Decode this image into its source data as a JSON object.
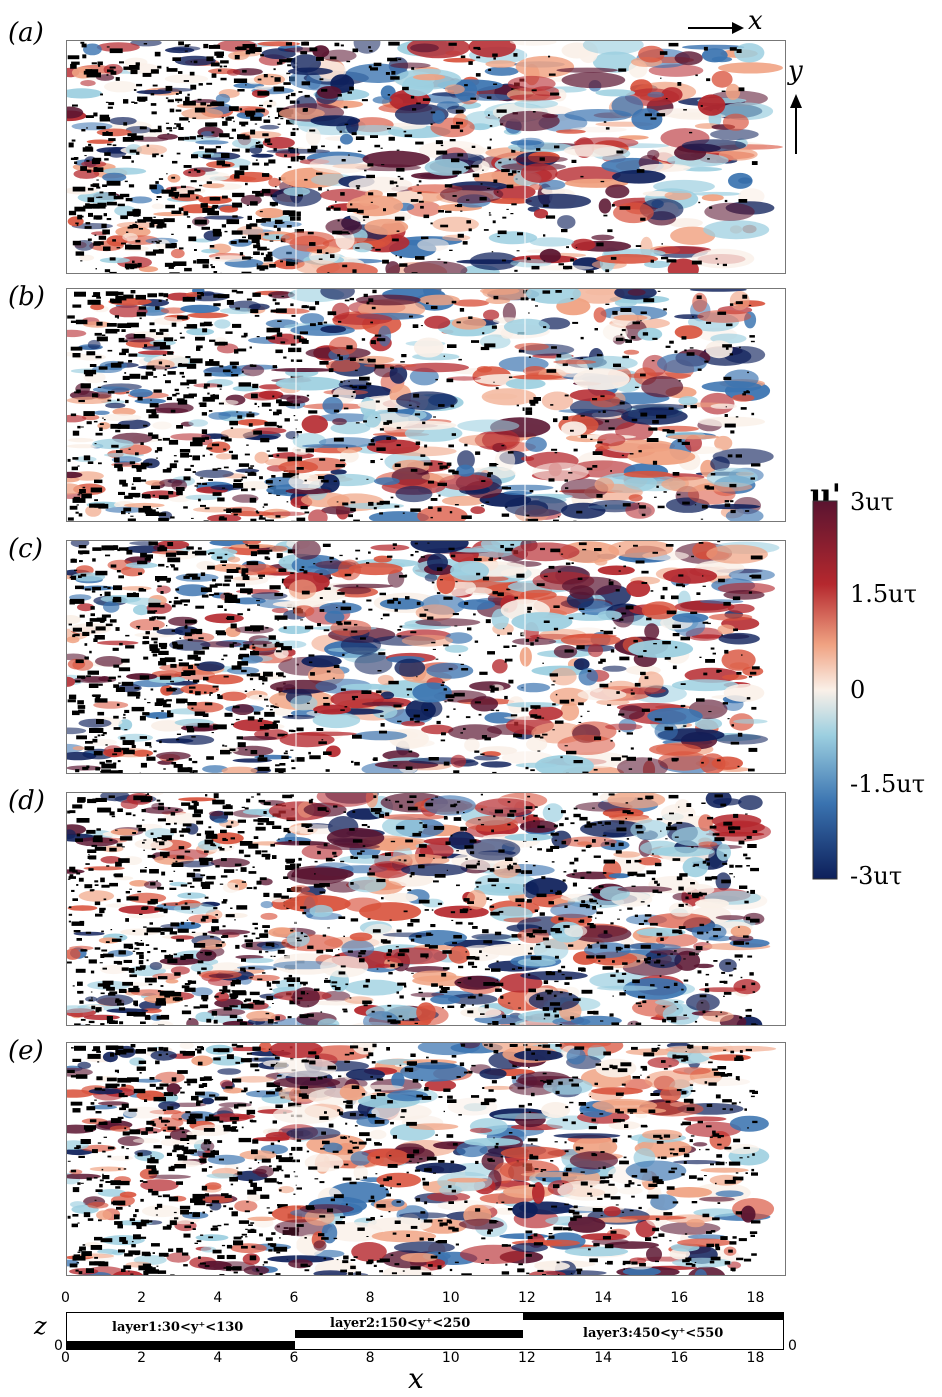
{
  "panels": [
    {
      "label": "(a)"
    },
    {
      "label": "(b)"
    },
    {
      "label": "(c)"
    },
    {
      "label": "(d)"
    },
    {
      "label": "(e)"
    }
  ],
  "direction_x": "x",
  "direction_y": "y",
  "colorbar": {
    "title": "u'",
    "ticks": [
      "3uτ",
      "1.5uτ",
      "0",
      "-1.5uτ",
      "-3uτ"
    ],
    "colors": [
      "#5a1430",
      "#b5282e",
      "#f0a282",
      "#faf0e8",
      "#9ccfe0",
      "#3a73b0",
      "#0d1f5a"
    ]
  },
  "x_ticks": [
    "0",
    "2",
    "4",
    "6",
    "8",
    "10",
    "12",
    "14",
    "16",
    "18"
  ],
  "z_label": "z",
  "x_label": "x",
  "z_zero_top": "0",
  "z_zero_right": "0",
  "z_zero_left": "0",
  "layers": [
    {
      "label": "layer1:30<y⁺<130"
    },
    {
      "label": "layer2:150<y⁺<250"
    },
    {
      "label": "layer3:450<y⁺<550"
    }
  ]
}
